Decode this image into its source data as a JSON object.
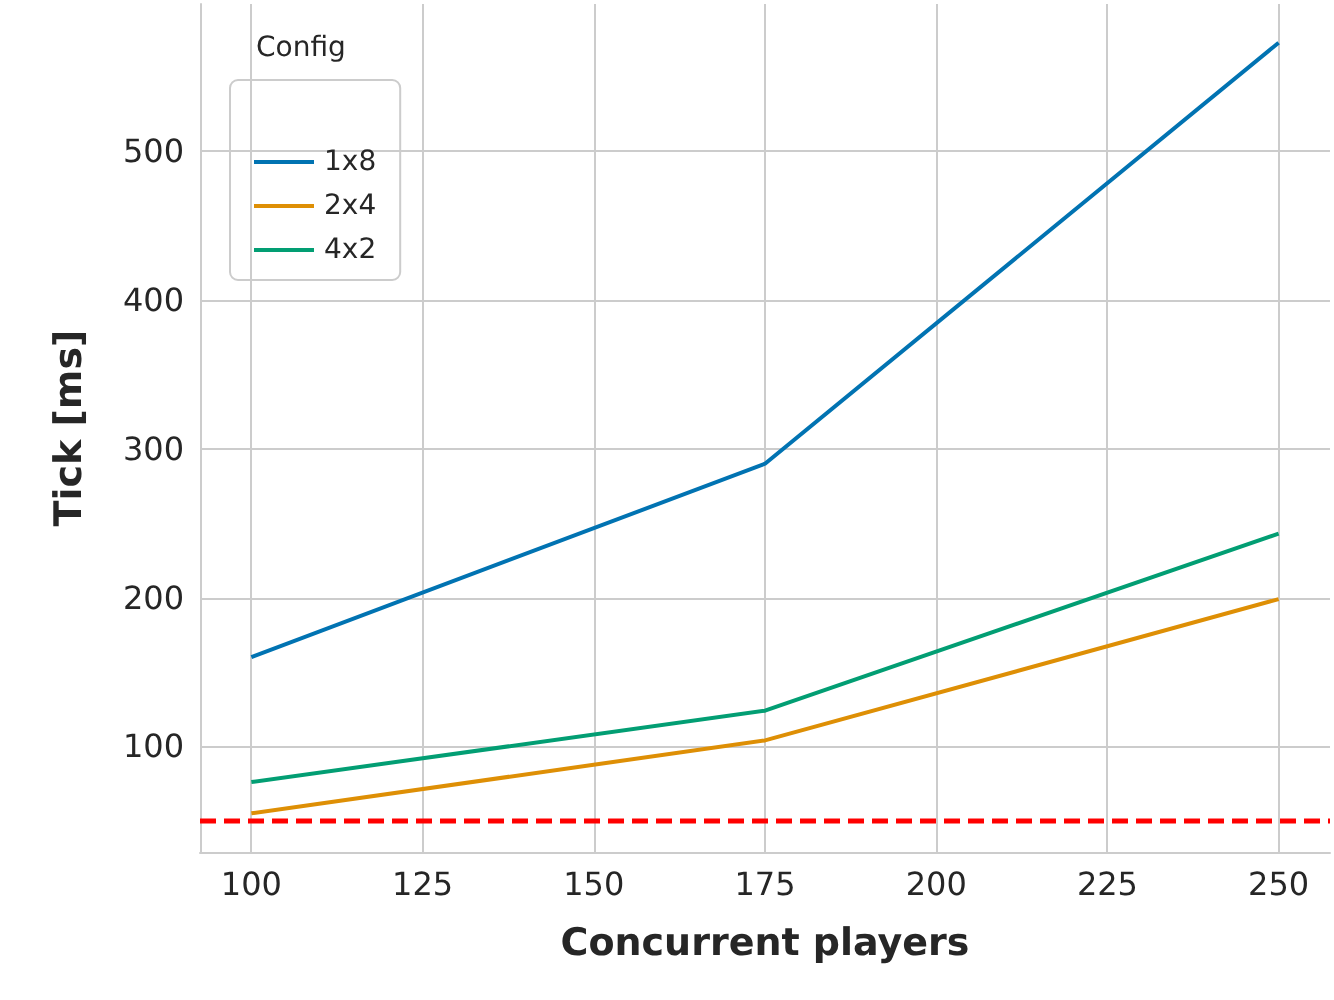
{
  "chart_data": {
    "type": "line",
    "xlabel": "Concurrent players",
    "ylabel": "Tick [ms]",
    "legend_title": "Config",
    "x": [
      100,
      175,
      250
    ],
    "series": [
      {
        "name": "1x8",
        "color": "#0173b2",
        "values": [
          160,
          290,
          573
        ]
      },
      {
        "name": "2x4",
        "color": "#de8f05",
        "values": [
          55,
          104,
          199
        ]
      },
      {
        "name": "4x2",
        "color": "#029e73",
        "values": [
          76,
          124,
          243
        ]
      }
    ],
    "xlim": [
      92.5,
      257.5
    ],
    "xticks": [
      100,
      125,
      150,
      175,
      200,
      225,
      250
    ],
    "ylim": [
      29,
      599
    ],
    "yticks": [
      100,
      200,
      300,
      400,
      500
    ],
    "ref_lines": [
      {
        "axis": "y",
        "value": 50,
        "color": "#ff0000",
        "line_style": "dashed"
      }
    ],
    "grid": true,
    "legend": "top left",
    "marker": "none",
    "line_style": "solid"
  }
}
